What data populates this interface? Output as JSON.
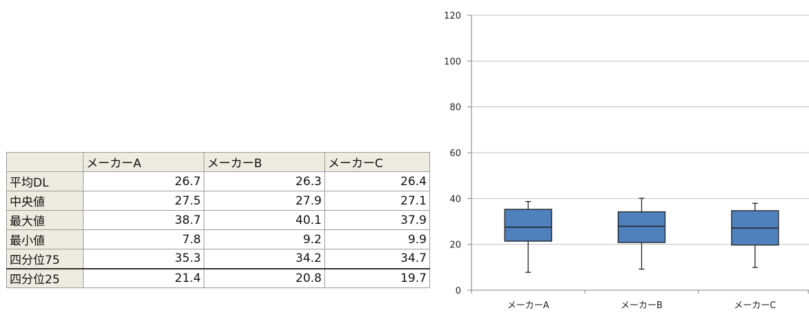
{
  "table": {
    "columns": [
      "メーカーA",
      "メーカーB",
      "メーカーC"
    ],
    "rows": [
      {
        "label": "平均DL",
        "values": [
          "26.7",
          "26.3",
          "26.4"
        ]
      },
      {
        "label": "中央値",
        "values": [
          "27.5",
          "27.9",
          "27.1"
        ]
      },
      {
        "label": "最大値",
        "values": [
          "38.7",
          "40.1",
          "37.9"
        ]
      },
      {
        "label": "最小値",
        "values": [
          "7.8",
          "9.2",
          "9.9"
        ]
      },
      {
        "label": "四分位75",
        "values": [
          "35.3",
          "34.2",
          "34.7"
        ]
      },
      {
        "label": "四分位25",
        "values": [
          "21.4",
          "20.8",
          "19.7"
        ]
      }
    ]
  },
  "chart_data": {
    "type": "box",
    "categories": [
      "メーカーA",
      "メーカーB",
      "メーカーC"
    ],
    "boxes": [
      {
        "category": "メーカーA",
        "min": 7.8,
        "q1": 21.4,
        "median": 27.5,
        "q3": 35.3,
        "max": 38.7
      },
      {
        "category": "メーカーB",
        "min": 9.2,
        "q1": 20.8,
        "median": 27.9,
        "q3": 34.2,
        "max": 40.1
      },
      {
        "category": "メーカーC",
        "min": 9.9,
        "q1": 19.7,
        "median": 27.1,
        "q3": 34.7,
        "max": 37.9
      }
    ],
    "ylim": [
      0,
      120
    ],
    "yticks": [
      0,
      20,
      40,
      60,
      80,
      100,
      120
    ],
    "grid": true,
    "legend": "none",
    "colors": {
      "box_fill": "#4f81bd",
      "box_stroke": "#1f1f1f",
      "grid": "#bfbfbf",
      "axis": "#808080"
    }
  }
}
